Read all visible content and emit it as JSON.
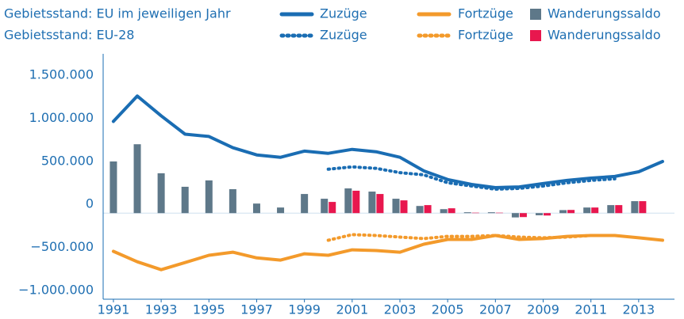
{
  "chart_data": {
    "type": "combo",
    "group_labels": [
      "Gebietsstand: EU im jeweiligen Jahr",
      "Gebietsstand: EU-28"
    ],
    "x": [
      1991,
      1992,
      1993,
      1994,
      1995,
      1996,
      1997,
      1998,
      1999,
      2000,
      2001,
      2002,
      2003,
      2004,
      2005,
      2006,
      2007,
      2008,
      2009,
      2010,
      2011,
      2012,
      2013,
      2014
    ],
    "xlim": [
      1990.57,
      2014.5
    ],
    "xticks": [
      1991,
      1993,
      1995,
      1997,
      1999,
      2001,
      2003,
      2005,
      2007,
      2009,
      2011,
      2013
    ],
    "ylim": [
      -1000000,
      1850000
    ],
    "yticks": [
      {
        "value": -1000000,
        "label": "−1.000.000"
      },
      {
        "value": -500000,
        "label": "−500.000"
      },
      0,
      {
        "value": 500000,
        "label": "500.000"
      },
      {
        "value": 1000000,
        "label": "1.000.000"
      },
      {
        "value": 1500000,
        "label": "1.500.000"
      }
    ],
    "series": [
      {
        "name": "Zuzüge",
        "type": "line",
        "style": "solid",
        "group": 0,
        "color": "#1a6db3",
        "values": [
          1065000,
          1360000,
          1130000,
          917000,
          890000,
          760000,
          676000,
          648000,
          720000,
          694000,
          740000,
          713000,
          648000,
          490000,
          390000,
          333000,
          296000,
          305000,
          343000,
          380000,
          407000,
          426000,
          480000,
          600000
        ]
      },
      {
        "name": "Fortzüge",
        "type": "line",
        "style": "solid",
        "group": 0,
        "color": "#f39a2b",
        "values": [
          -444000,
          -565000,
          -657000,
          -574000,
          -490000,
          -454000,
          -520000,
          -546000,
          -472000,
          -490000,
          -426000,
          -435000,
          -454000,
          -361000,
          -306000,
          -306000,
          -260000,
          -306000,
          -296000,
          -270000,
          -260000,
          -260000,
          -287000,
          -315000
        ]
      },
      {
        "name": "Wanderungssaldo",
        "type": "bar",
        "group": 0,
        "color": "#5e7889",
        "values": [
          600000,
          800000,
          463000,
          306000,
          380000,
          278000,
          111000,
          65000,
          222000,
          167000,
          287000,
          250000,
          167000,
          83000,
          46000,
          10000,
          10000,
          -50000,
          -25000,
          35000,
          65000,
          93000,
          139000,
          null
        ]
      },
      {
        "name": "Zuzüge",
        "type": "line",
        "style": "dotted",
        "group": 1,
        "color": "#1a6db3",
        "values": [
          null,
          null,
          null,
          null,
          null,
          null,
          null,
          null,
          null,
          510000,
          537000,
          520000,
          470000,
          444000,
          352000,
          315000,
          278000,
          287000,
          315000,
          352000,
          380000,
          398000,
          null,
          null
        ]
      },
      {
        "name": "Fortzüge",
        "type": "line",
        "style": "dotted",
        "group": 1,
        "color": "#f39a2b",
        "values": [
          null,
          null,
          null,
          null,
          null,
          null,
          null,
          null,
          null,
          -315000,
          -250000,
          -260000,
          -278000,
          -296000,
          -270000,
          -270000,
          -260000,
          -278000,
          -287000,
          -278000,
          -260000,
          -260000,
          null,
          null
        ]
      },
      {
        "name": "Wanderungssaldo",
        "type": "bar",
        "group": 1,
        "color": "#e8174e",
        "values": [
          null,
          null,
          null,
          null,
          null,
          null,
          null,
          null,
          null,
          130000,
          260000,
          222000,
          148000,
          93000,
          56000,
          5000,
          5000,
          -46000,
          -28000,
          37000,
          65000,
          93000,
          139000,
          null
        ]
      }
    ]
  }
}
